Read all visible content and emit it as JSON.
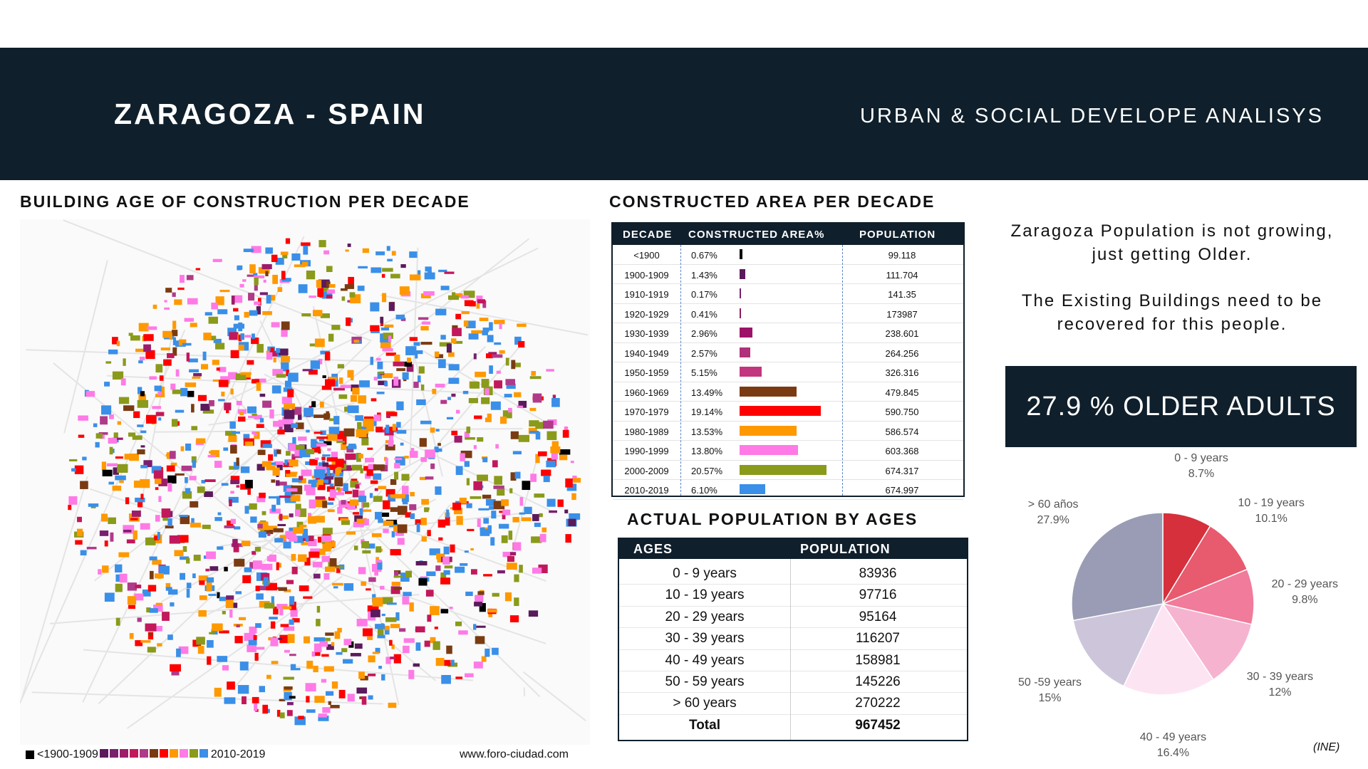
{
  "header": {
    "title": "ZARAGOZA - SPAIN",
    "subtitle": "URBAN & SOCIAL DEVELOPE ANALISYS"
  },
  "map_section": {
    "title": "BUILDING AGE OF CONSTRUCTION PER DECADE",
    "legend_start": "<1900-1909",
    "legend_end": "2010-2019",
    "legend_colors": [
      "#000000",
      "#5b1a5b",
      "#7a1f6e",
      "#9c1c6a",
      "#c2185b",
      "#b03a8a",
      "#7a3b12",
      "#ff0000",
      "#ff9900",
      "#ff7ae6",
      "#8a9a1a",
      "#3a8fe8"
    ],
    "source": "www.foro-ciudad.com"
  },
  "decade_section": {
    "title": "CONSTRUCTED AREA PER DECADE",
    "headers": {
      "decade": "DECADE",
      "area": "CONSTRUCTED AREA%",
      "population": "POPULATION"
    },
    "rows": [
      {
        "decade": "<1900",
        "area": "0.67%",
        "value": 0.67,
        "color": "#000000",
        "population": "99.118"
      },
      {
        "decade": "1900-1909",
        "area": "1.43%",
        "value": 1.43,
        "color": "#5b1a5b",
        "population": "111.704"
      },
      {
        "decade": "1910-1919",
        "area": "0.17%",
        "value": 0.17,
        "color": "#7a1f6e",
        "population": "141.35"
      },
      {
        "decade": "1920-1929",
        "area": "0.41%",
        "value": 0.41,
        "color": "#8e1a5c",
        "population": "173987"
      },
      {
        "decade": "1930-1939",
        "area": "2.96%",
        "value": 2.96,
        "color": "#9c1268",
        "population": "238.601"
      },
      {
        "decade": "1940-1949",
        "area": "2.57%",
        "value": 2.57,
        "color": "#b0307a",
        "population": "264.256"
      },
      {
        "decade": "1950-1959",
        "area": "5.15%",
        "value": 5.15,
        "color": "#c2357f",
        "population": "326.316"
      },
      {
        "decade": "1960-1969",
        "area": "13.49%",
        "value": 13.49,
        "color": "#7a3b12",
        "population": "479.845"
      },
      {
        "decade": "1970-1979",
        "area": "19.14%",
        "value": 19.14,
        "color": "#ff0000",
        "population": "590.750"
      },
      {
        "decade": "1980-1989",
        "area": "13.53%",
        "value": 13.53,
        "color": "#ff9900",
        "population": "586.574"
      },
      {
        "decade": "1990-1999",
        "area": "13.80%",
        "value": 13.8,
        "color": "#ff7ae6",
        "population": "603.368"
      },
      {
        "decade": "2000-2009",
        "area": "20.57%",
        "value": 20.57,
        "color": "#8a9a1a",
        "population": "674.317"
      },
      {
        "decade": "2010-2019",
        "area": "6.10%",
        "value": 6.1,
        "color": "#3a8fe8",
        "population": "674.997"
      }
    ]
  },
  "age_section": {
    "title": "ACTUAL POPULATION BY AGES",
    "headers": {
      "ages": "AGES",
      "population": "POPULATION"
    },
    "rows": [
      {
        "age": "0 - 9 years",
        "population": "83936"
      },
      {
        "age": "10 - 19 years",
        "population": "97716"
      },
      {
        "age": "20 - 29 years",
        "population": "95164"
      },
      {
        "age": "30 - 39 years",
        "population": "116207"
      },
      {
        "age": "40 - 49 years",
        "population": "158981"
      },
      {
        "age": "50 - 59 years",
        "population": "145226"
      },
      {
        "age": "> 60 years",
        "population": "270222"
      }
    ],
    "total": {
      "label": "Total",
      "population": "967452"
    }
  },
  "notes": {
    "line1a": "Zaragoza Population is not growing,",
    "line1b": "just getting Older.",
    "line2a": "The Existing Buildings need to be",
    "line2b": "recovered for this people."
  },
  "highlight": "27.9 % OLDER ADULTS",
  "chart_data": {
    "type": "pie",
    "slices": [
      {
        "label": "0 - 9 years",
        "pct_label": "8.7%",
        "value": 8.7,
        "color": "#d6303c"
      },
      {
        "label": "10 - 19 years",
        "pct_label": "10.1%",
        "value": 10.1,
        "color": "#e85a6e"
      },
      {
        "label": "20 - 29 years",
        "pct_label": "9.8%",
        "value": 9.8,
        "color": "#f07b9a"
      },
      {
        "label": "30 - 39 years",
        "pct_label": "12%",
        "value": 12,
        "color": "#f6b3cf"
      },
      {
        "label": "40 - 49 years",
        "pct_label": "16.4%",
        "value": 16.4,
        "color": "#fde4f3"
      },
      {
        "label": "50 -59 years",
        "pct_label": "15%",
        "value": 15,
        "color": "#cdc6db"
      },
      {
        "label": "> 60 años",
        "pct_label": "27.9%",
        "value": 27.9,
        "color": "#999cb4"
      }
    ]
  },
  "source": "(INE)"
}
